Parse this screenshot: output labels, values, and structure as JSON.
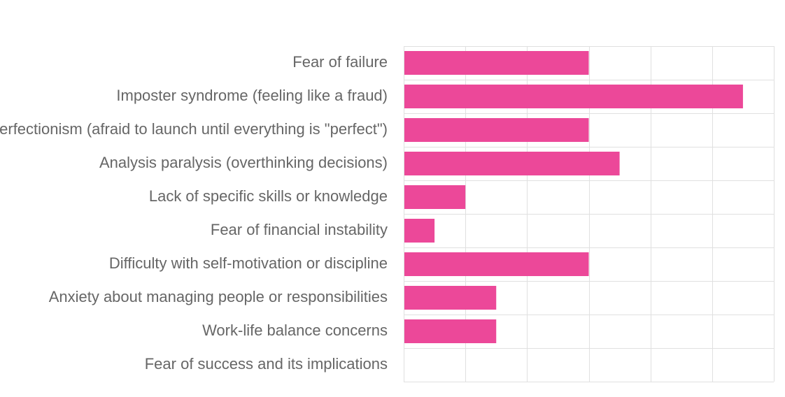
{
  "chart_data": {
    "type": "bar",
    "orientation": "horizontal",
    "title": "",
    "xlabel": "",
    "ylabel": "",
    "categories": [
      "Fear of failure",
      "Imposter syndrome (feeling like a fraud)",
      "Perfectionism (afraid to launch until everything is \"perfect\")",
      "Analysis paralysis (overthinking decisions)",
      "Lack of specific skills or knowledge",
      "Fear of financial instability",
      "Difficulty with self-motivation or discipline",
      "Anxiety about managing people or responsibilities",
      "Work-life balance concerns",
      "Fear of success and its implications"
    ],
    "values": [
      6,
      11,
      6,
      7,
      2,
      1,
      6,
      3,
      3,
      0
    ],
    "xlim": [
      0,
      12
    ],
    "grid": true,
    "legend": "none",
    "bar_color": "#ec4899",
    "grid_color": "#e0e0e0",
    "label_color": "#666666"
  }
}
